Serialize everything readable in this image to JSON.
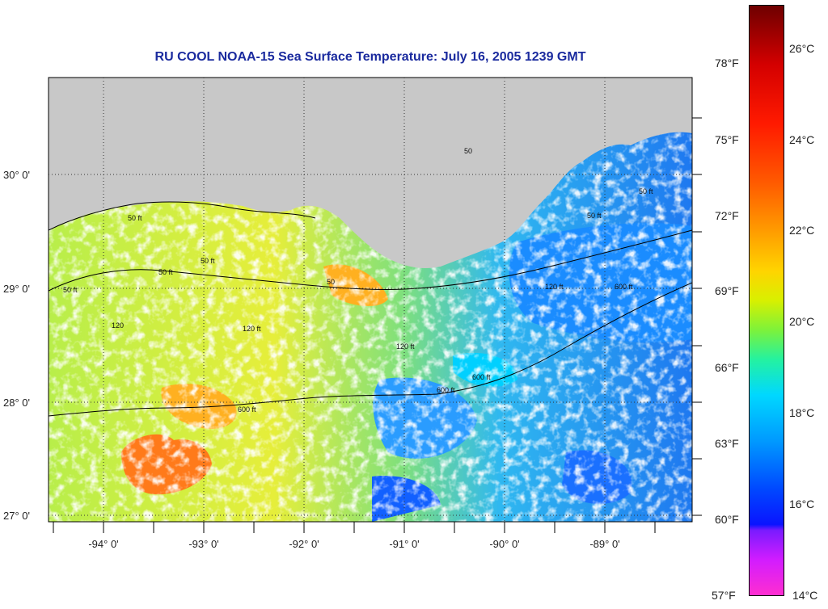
{
  "title": "RU COOL  NOAA-15  Sea Surface Temperature:  July 16, 2005 1239 GMT",
  "lat_labels": [
    "30° 0'",
    "29° 0'",
    "28° 0'",
    "27° 0'"
  ],
  "lon_labels": [
    "-94° 0'",
    "-93° 0'",
    "-92° 0'",
    "-91° 0'",
    "-90° 0'",
    "-89° 0'"
  ],
  "contour_labels": [
    "50 ft",
    "50 ft",
    "50 ft",
    "50 ft",
    "50 ft",
    "50",
    "50",
    "50 ft",
    "120 ft",
    "120 ft",
    "120 ft",
    "120",
    "600 ft",
    "600 ft",
    "600 ft",
    "600 ft"
  ],
  "colorbar": {
    "fahrenheit": [
      "78°F",
      "75°F",
      "72°F",
      "69°F",
      "66°F",
      "63°F",
      "60°F",
      "57°F"
    ],
    "celsius": [
      "26°C",
      "24°C",
      "22°C",
      "20°C",
      "18°C",
      "16°C",
      "14°C"
    ]
  },
  "colors": {
    "land": "#c8c8c8",
    "title": "#1a2a9e",
    "warm": "#ff7a1a",
    "cool": "#1a8cff"
  }
}
